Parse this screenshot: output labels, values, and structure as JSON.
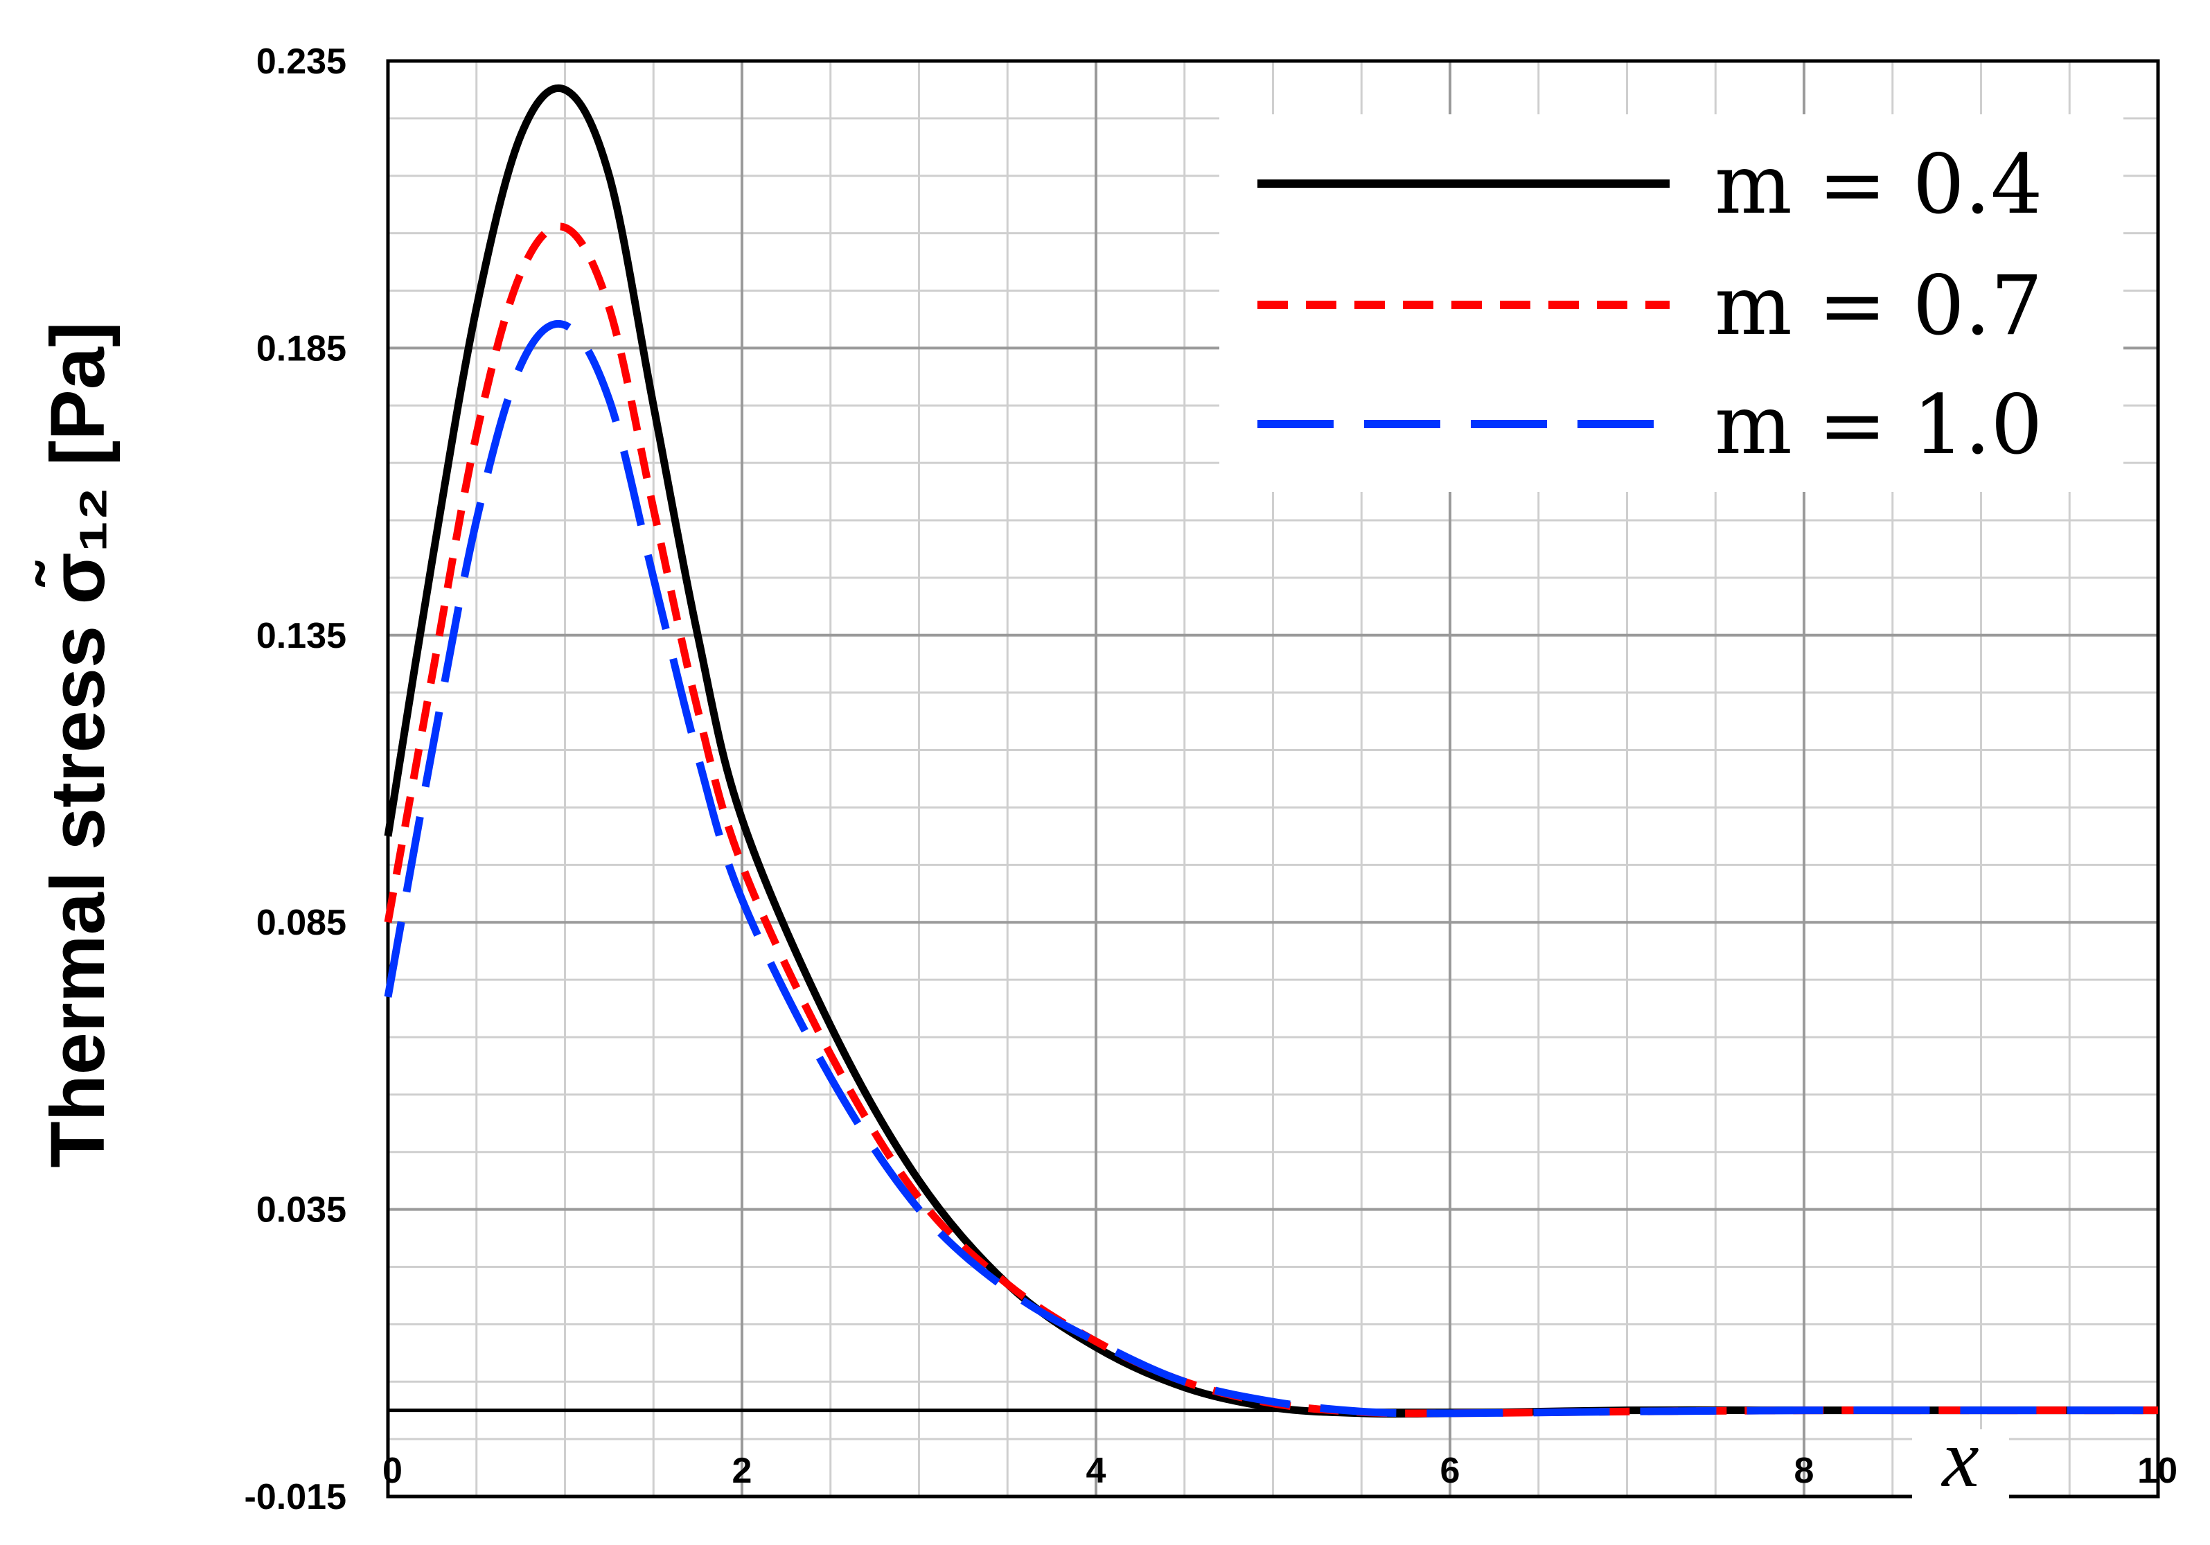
{
  "chart_data": {
    "type": "line",
    "title": "",
    "xlabel": "x",
    "ylabel": "Thermal stress σ̃₁₂ [Pa]",
    "xlim": [
      0,
      10
    ],
    "ylim": [
      -0.015,
      0.235
    ],
    "x_ticks": [
      "0",
      "2",
      "4",
      "6",
      "8",
      "10"
    ],
    "y_ticks": [
      "-0.015",
      "0.035",
      "0.085",
      "0.135",
      "0.185",
      "0.235"
    ],
    "grid": true,
    "legend_position": "top-right",
    "x": [
      0,
      0.25,
      0.5,
      0.75,
      1.0,
      1.25,
      1.5,
      1.75,
      2.0,
      2.5,
      3.0,
      3.5,
      4.0,
      4.5,
      5.0,
      5.5,
      6.0,
      7.0,
      8.0,
      9.0,
      10.0
    ],
    "series": [
      {
        "name": "m = 0.4",
        "color": "#000000",
        "dash": "solid",
        "values": [
          0.1,
          0.148,
          0.192,
          0.222,
          0.23,
          0.215,
          0.175,
          0.135,
          0.103,
          0.067,
          0.04,
          0.022,
          0.011,
          0.004,
          0.0005,
          -0.0005,
          -0.0005,
          0,
          0,
          0,
          0
        ]
      },
      {
        "name": "m = 0.7",
        "color": "#ff0000",
        "dash": "short",
        "values": [
          0.085,
          0.128,
          0.17,
          0.198,
          0.206,
          0.192,
          0.157,
          0.122,
          0.095,
          0.062,
          0.037,
          0.022,
          0.012,
          0.005,
          0.0012,
          -0.0003,
          -0.0005,
          -0.0002,
          0,
          0,
          0
        ]
      },
      {
        "name": "m = 1.0",
        "color": "#0033ff",
        "dash": "long",
        "values": [
          0.072,
          0.115,
          0.155,
          0.182,
          0.189,
          0.176,
          0.145,
          0.114,
          0.089,
          0.058,
          0.035,
          0.021,
          0.012,
          0.005,
          0.0015,
          -0.0002,
          -0.0005,
          -0.0002,
          0,
          0,
          0
        ]
      }
    ]
  }
}
